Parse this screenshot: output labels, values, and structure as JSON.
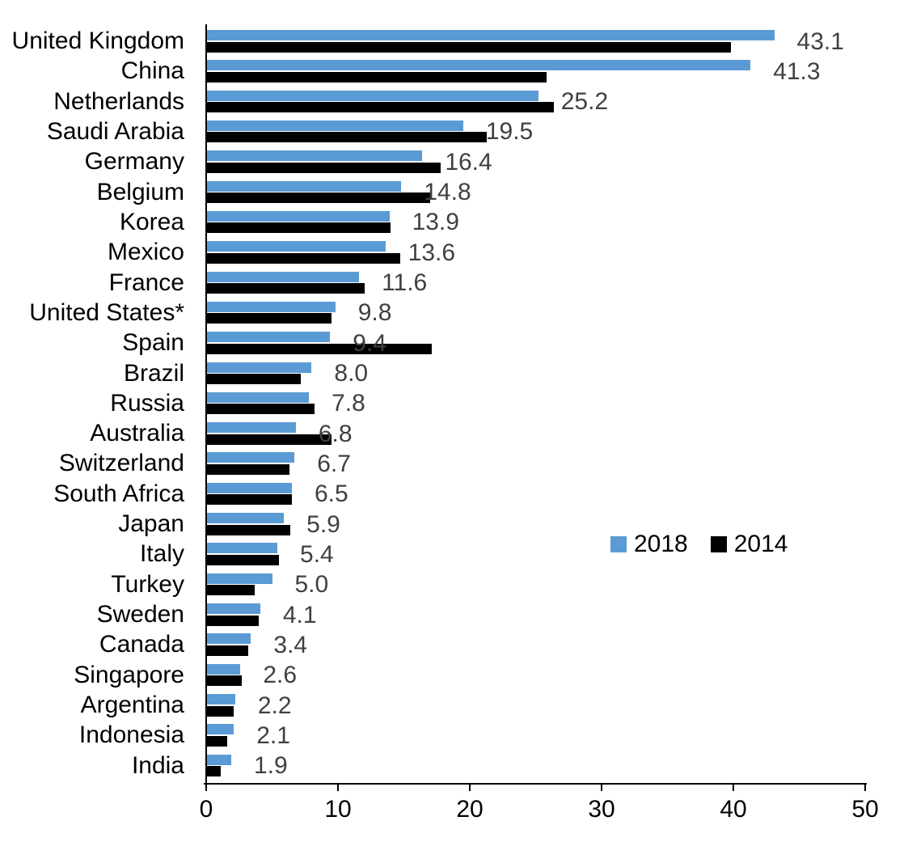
{
  "chart_data": {
    "type": "bar",
    "orientation": "horizontal",
    "title": "",
    "categories": [
      "United Kingdom",
      "China",
      "Netherlands",
      "Saudi Arabia",
      "Germany",
      "Belgium",
      "Korea",
      "Mexico",
      "France",
      "United States*",
      "Spain",
      "Brazil",
      "Russia",
      "Australia",
      "Switzerland",
      "South Africa",
      "Japan",
      "Italy",
      "Turkey",
      "Sweden",
      "Canada",
      "Singapore",
      "Argentina",
      "Indonesia",
      "India"
    ],
    "series": [
      {
        "name": "2018",
        "color": "#5B9BD5",
        "values": [
          43.1,
          41.3,
          25.2,
          19.5,
          16.4,
          14.8,
          13.9,
          13.6,
          11.6,
          9.8,
          9.4,
          8.0,
          7.8,
          6.8,
          6.7,
          6.5,
          5.9,
          5.4,
          5.0,
          4.1,
          3.4,
          2.6,
          2.2,
          2.1,
          1.9
        ],
        "data_labels": [
          "43.1",
          "41.3",
          "25.2",
          "19.5",
          "16.4",
          "14.8",
          "13.9",
          "13.6",
          "11.6",
          "9.8",
          "9.4",
          "8.0",
          "7.8",
          "6.8",
          "6.7",
          "6.5",
          "5.9",
          "5.4",
          "5.0",
          "4.1",
          "3.4",
          "2.6",
          "2.2",
          "2.1",
          "1.9"
        ]
      },
      {
        "name": "2014",
        "color": "#000000",
        "values": [
          39.8,
          25.8,
          26.4,
          21.3,
          17.8,
          17.0,
          14.0,
          14.7,
          12.0,
          9.5,
          17.1,
          7.2,
          8.2,
          9.5,
          6.3,
          6.5,
          6.4,
          5.5,
          3.7,
          4.0,
          3.2,
          2.7,
          2.1,
          1.6,
          1.1
        ]
      }
    ],
    "xlim": [
      0,
      50
    ],
    "x_ticks": [
      "0",
      "10",
      "20",
      "30",
      "40",
      "50"
    ],
    "legend": {
      "position": "center-right",
      "entries": [
        {
          "label": "2018",
          "color": "#5B9BD5"
        },
        {
          "label": "2014",
          "color": "#000000"
        }
      ]
    },
    "data_label_color": "#404040",
    "axis_color": "#000000",
    "grid": "off",
    "data_labels_shown_for_series": "2018"
  }
}
